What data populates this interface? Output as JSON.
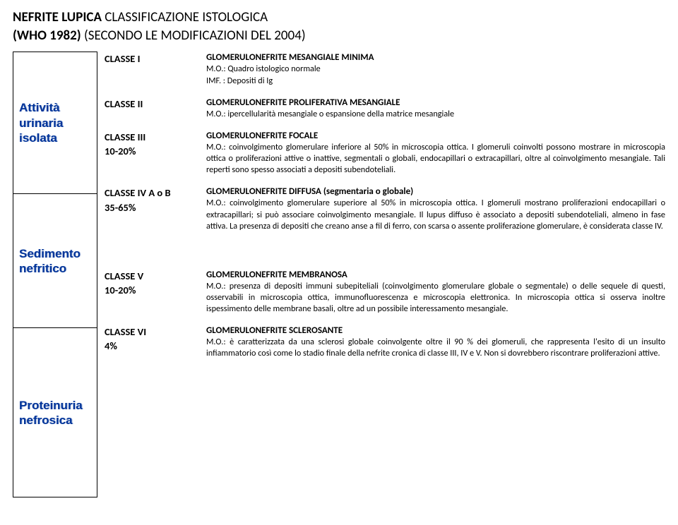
{
  "title": {
    "bold_left": "NEFRITE LUPICA",
    "reg_1": " CLASSIFICAZIONE ISTOLOGICA",
    "bold_line2_left": "(WHO 1982)",
    "reg_line2": " (SECONDO LE MODIFICAZIONI DEL 2004)"
  },
  "sidebar": {
    "box1": "Attività urinaria isolata",
    "box2": "Sedimento nefritico",
    "box3": "Proteinuria nefrosica"
  },
  "classes": [
    {
      "label": "CLASSE  I",
      "pct": "",
      "heading": "GLOMERULONEFRITE MESANGIALE MINIMA",
      "body": "M.O.: Quadro istologico normale\nIMF. : Depositi di Ig"
    },
    {
      "label": "CLASSE II",
      "pct": "",
      "heading": "GLOMERULONEFRITE PROLIFERATIVA MESANGIALE",
      "body": "M.O.: ipercellularità mesangiale o espansione della matrice mesangiale"
    },
    {
      "label": "CLASSE III",
      "pct": "10-20%",
      "heading": "GLOMERULONEFRITE  FOCALE",
      "body": "M.O.: coinvolgimento glomerulare inferiore al 50% in microscopia ottica. I glomeruli coinvolti possono mostrare in microscopia ottica o proliferazioni attive o inattive, segmentali o globali, endocapillari o extracapillari, oltre al coinvolgimento mesangiale. Tali reperti sono spesso associati a depositi subendoteliali."
    },
    {
      "label": "CLASSE IV A o B",
      "pct": "35-65%",
      "heading": "GLOMERULONEFRITE DIFFUSA (segmentaria o globale)",
      "body": "M.O.: coinvolgimento glomerulare superiore al 50% in microscopia ottica. I glomeruli mostrano proliferazioni endocapillari o extracapillari; si può associare coinvolgimento mesangiale. Il lupus diffuso è associato a depositi subendoteliali, almeno in fase attiva. La presenza di depositi che creano anse a fil di ferro, con scarsa o assente proliferazione glomerulare, è considerata classe IV."
    },
    {
      "label": "CLASSE V",
      "pct": "10-20%",
      "heading": "GLOMERULONEFRITE MEMBRANOSA",
      "body": "M.O.: presenza di depositi immuni subepiteliali (coinvolgimento glomerulare globale o segmentale) o delle sequele di questi, osservabili in microscopia ottica, immunofluorescenza e microscopia elettronica. In microscopia ottica si osserva inoltre ispessimento delle membrane basali, oltre ad un possibile interessamento mesangiale."
    },
    {
      "label": "CLASSE VI",
      "pct": "4%",
      "heading": "GLOMERULONEFRITE SCLEROSANTE",
      "body": "M.O.: è caratterizzata da una sclerosi globale coinvolgente oltre il 90 % dei glomeruli, che rappresenta l'esito di un insulto infiammatorio così come lo stadio finale della nefrite cronica di classe III, IV e V. Non si dovrebbero riscontrare proliferazioni attive."
    }
  ]
}
